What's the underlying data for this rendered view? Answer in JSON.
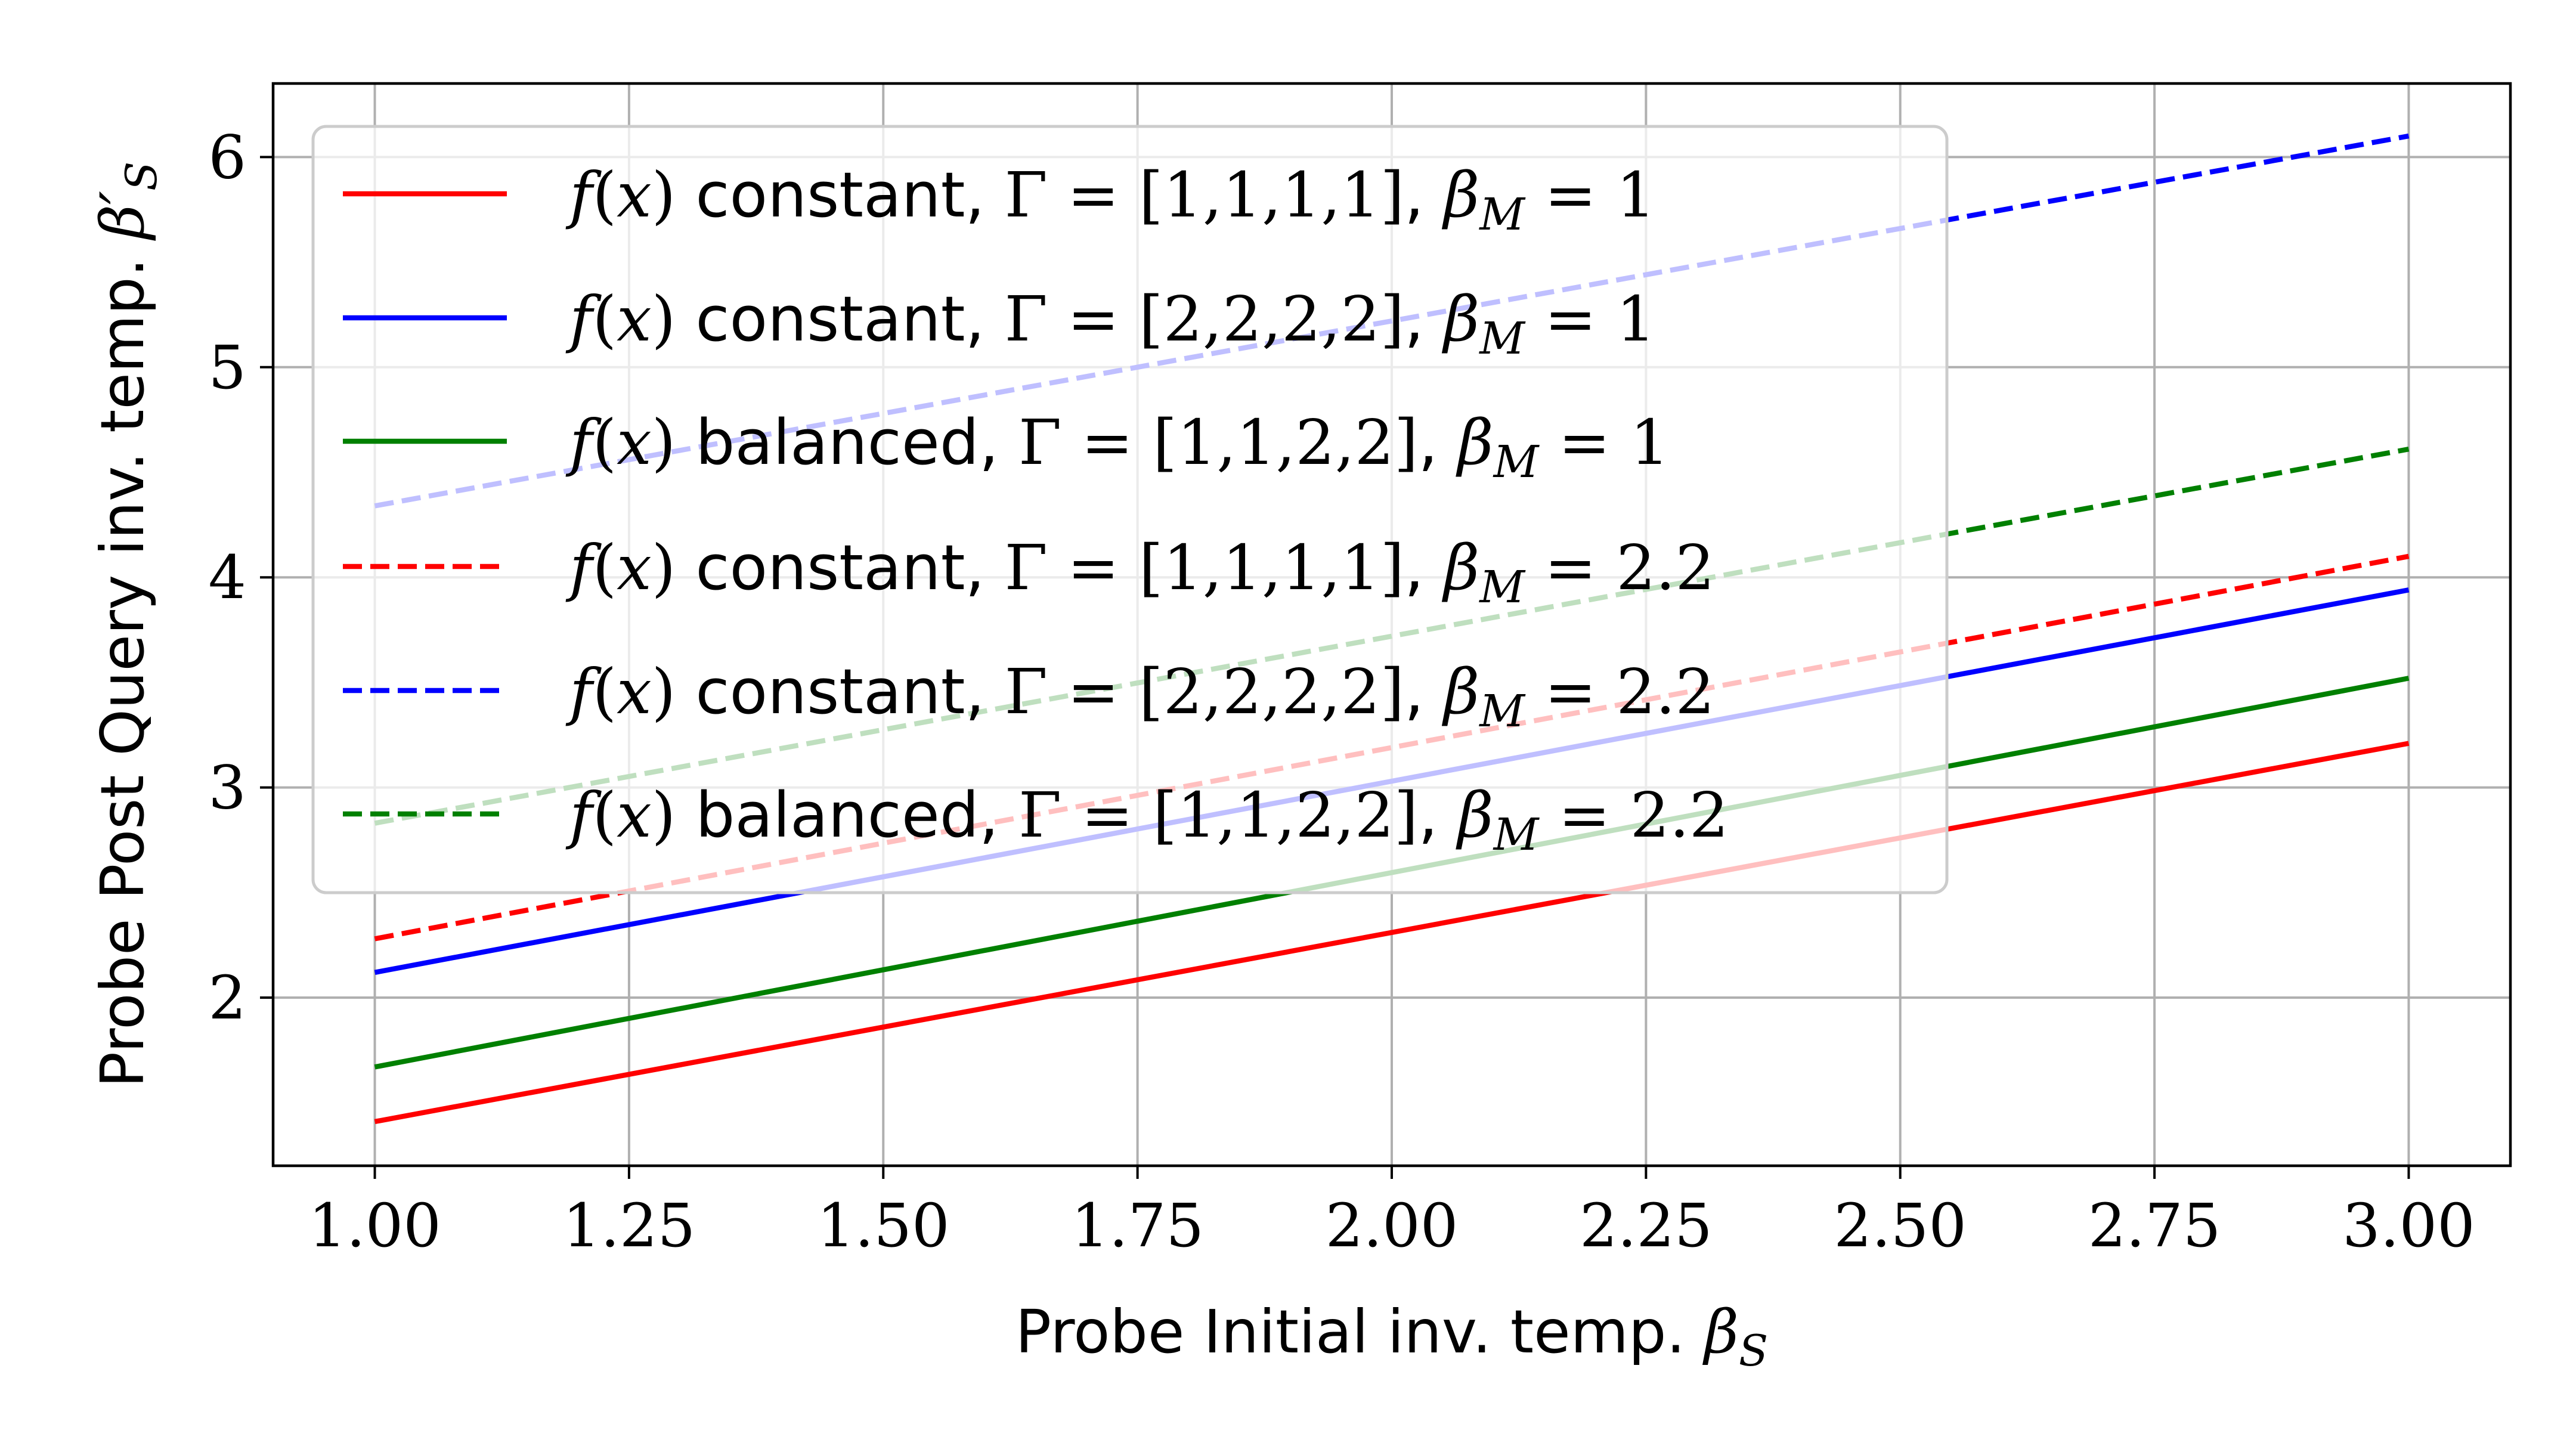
{
  "chart_data": {
    "type": "line",
    "title": "",
    "xlabel": "Probe Initial inv. temp. β_S",
    "ylabel": "Probe Post Query inv. temp. β′_S",
    "xlim": [
      0.9,
      3.1
    ],
    "ylim": [
      1.2,
      6.35
    ],
    "x_ticks": [
      "1.00",
      "1.25",
      "1.50",
      "1.75",
      "2.00",
      "2.25",
      "2.50",
      "2.75",
      "3.00"
    ],
    "y_ticks": [
      "2",
      "3",
      "4",
      "5",
      "6"
    ],
    "grid": true,
    "legend_position": "top-left",
    "x": [
      1.0,
      3.0
    ],
    "series": [
      {
        "name": "f(x) constant, Γ = [1,1,1,1], β_M = 1",
        "color": "#ff0000",
        "dash": "solid",
        "values": [
          1.41,
          3.21
        ]
      },
      {
        "name": "f(x) constant, Γ = [2,2,2,2], β_M = 1",
        "color": "#0000ff",
        "dash": "solid",
        "values": [
          2.12,
          3.94
        ]
      },
      {
        "name": "f(x) balanced, Γ = [1,1,2,2], β_M = 1",
        "color": "#008000",
        "dash": "solid",
        "values": [
          1.67,
          3.52
        ]
      },
      {
        "name": "f(x) constant, Γ = [1,1,1,1], β_M = 2.2",
        "color": "#ff0000",
        "dash": "dashed",
        "values": [
          2.28,
          4.1
        ]
      },
      {
        "name": "f(x) constant, Γ = [2,2,2,2], β_M = 2.2",
        "color": "#0000ff",
        "dash": "dashed",
        "values": [
          4.34,
          6.1
        ]
      },
      {
        "name": "f(x) balanced, Γ = [1,1,2,2], β_M = 2.2",
        "color": "#008000",
        "dash": "dashed",
        "values": [
          2.83,
          4.61
        ]
      }
    ],
    "legend": [
      {
        "kind": "constant",
        "gamma": "[1,1,1,1]",
        "beta_m": "1"
      },
      {
        "kind": "constant",
        "gamma": "[2,2,2,2]",
        "beta_m": "1"
      },
      {
        "kind": "balanced",
        "gamma": "[1,1,2,2]",
        "beta_m": "1"
      },
      {
        "kind": "constant",
        "gamma": "[1,1,1,1]",
        "beta_m": "2.2"
      },
      {
        "kind": "constant",
        "gamma": "[2,2,2,2]",
        "beta_m": "2.2"
      },
      {
        "kind": "balanced",
        "gamma": "[1,1,2,2]",
        "beta_m": "2.2"
      }
    ]
  }
}
